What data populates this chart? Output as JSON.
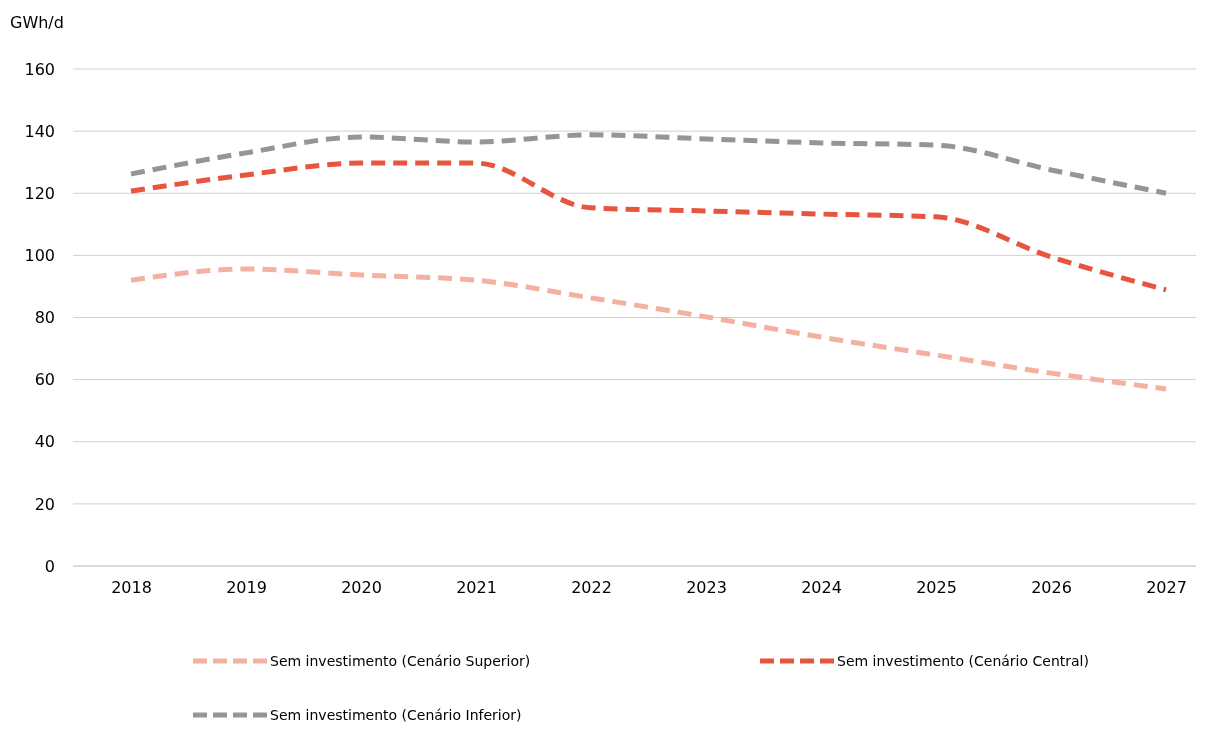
{
  "chart_data": {
    "type": "line",
    "ylabel": "GWh/d",
    "categories": [
      "2018",
      "2019",
      "2020",
      "2021",
      "2022",
      "2023",
      "2024",
      "2025",
      "2026",
      "2027"
    ],
    "ylim": [
      0,
      160
    ],
    "yticks": [
      0,
      20,
      40,
      60,
      80,
      100,
      120,
      140,
      160
    ],
    "grid": "y",
    "legend": "bottom",
    "line_style": "dashed",
    "marker": "none",
    "series": [
      {
        "name": "Sem investimento (Cenário Superior)",
        "color": "#f4b0a0",
        "values": [
          92,
          95.6,
          93.7,
          92,
          86.3,
          80.2,
          73.7,
          67.9,
          62.1,
          57
        ]
      },
      {
        "name": "Sem investimento (Cenário Central)",
        "color": "#e8553f",
        "values": [
          120.7,
          125.9,
          129.7,
          129.7,
          115.3,
          114.3,
          113.3,
          112.4,
          99.5,
          88.9
        ]
      },
      {
        "name": "Sem investimento (Cenário Inferior)",
        "color": "#939598",
        "values": [
          126.2,
          133,
          138.1,
          136.5,
          138.8,
          137.5,
          136.2,
          135.5,
          127.5,
          120
        ]
      }
    ]
  }
}
